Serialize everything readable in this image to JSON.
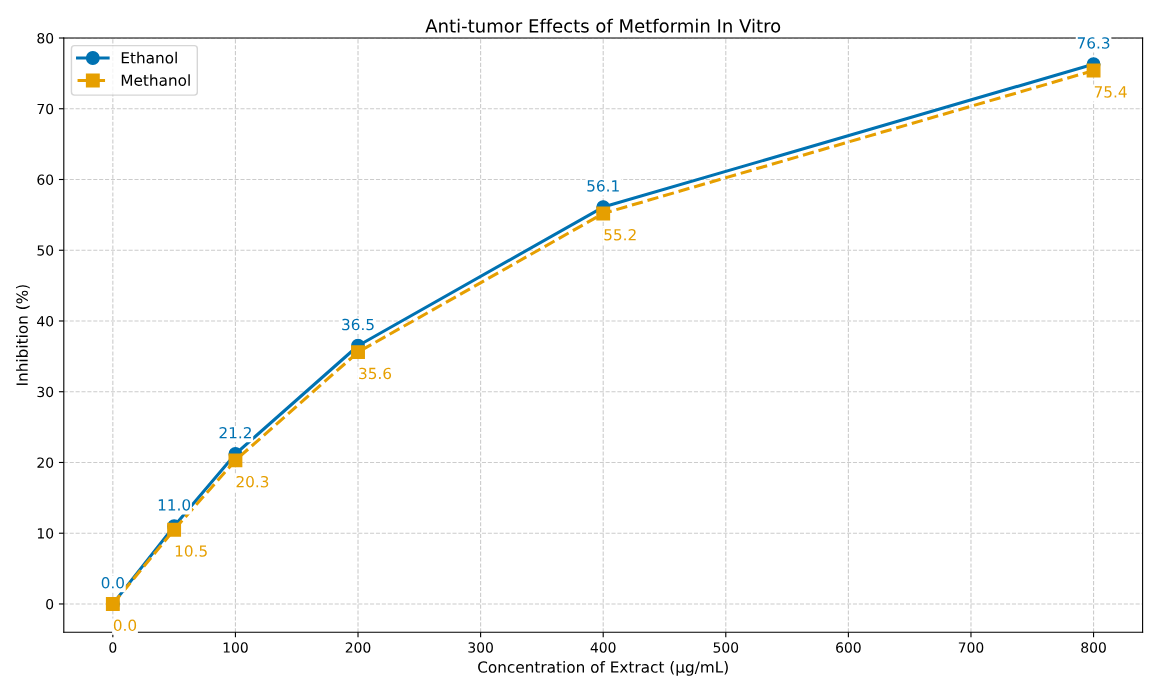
{
  "chart_data": {
    "type": "line",
    "title": "Anti-tumor Effects of Metformin In Vitro",
    "xlabel": "Concentration of Extract (μg/mL)",
    "ylabel": "Inhibition (%)",
    "x": [
      0,
      50,
      100,
      200,
      400,
      800
    ],
    "series": [
      {
        "name": "Ethanol",
        "color": "#0072b2",
        "values": [
          0.0,
          11.0,
          21.2,
          36.5,
          56.1,
          76.3
        ],
        "value_labels": [
          "0.0",
          "11.0",
          "21.2",
          "36.5",
          "56.1",
          "76.3"
        ],
        "marker": "circle",
        "line_style": "solid"
      },
      {
        "name": "Methanol",
        "color": "#e69f00",
        "values": [
          0.0,
          10.5,
          20.3,
          35.6,
          55.2,
          75.4
        ],
        "value_labels": [
          "0.0",
          "10.5",
          "20.3",
          "35.6",
          "55.2",
          "75.4"
        ],
        "marker": "square",
        "line_style": "dashed"
      }
    ],
    "xlim": [
      -40,
      840
    ],
    "xticks": [
      0,
      100,
      200,
      300,
      400,
      500,
      600,
      700,
      800
    ],
    "ylim": [
      -4,
      80
    ],
    "yticks": [
      0,
      10,
      20,
      30,
      40,
      50,
      60,
      70,
      80
    ],
    "grid": true,
    "legend": "top left"
  }
}
